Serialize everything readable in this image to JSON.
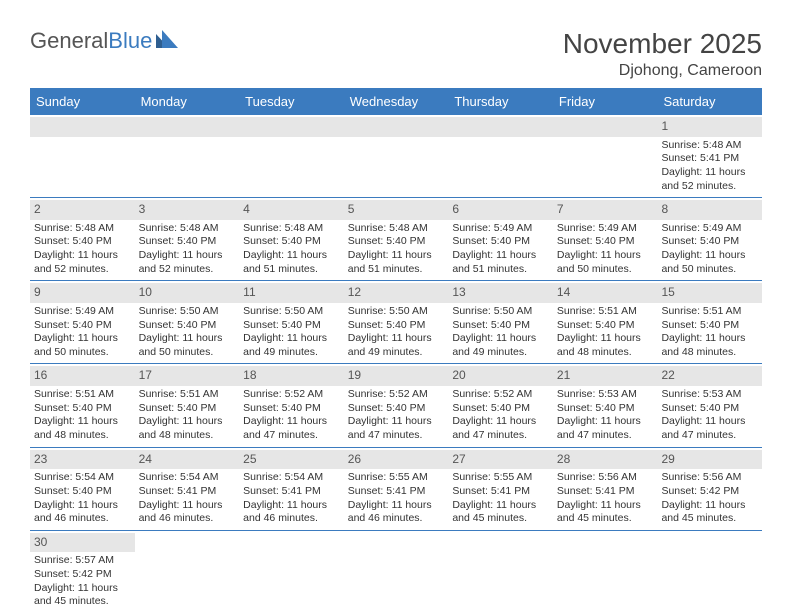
{
  "logo": {
    "text1": "General",
    "text2": "Blue"
  },
  "title": "November 2025",
  "location": "Djohong, Cameroon",
  "dayNames": [
    "Sunday",
    "Monday",
    "Tuesday",
    "Wednesday",
    "Thursday",
    "Friday",
    "Saturday"
  ],
  "colors": {
    "headerBg": "#3b7bbf",
    "dayBarBg": "#e6e6e6",
    "rowBorder": "#3b7bbf",
    "text": "#333333",
    "logoGrey": "#555555",
    "logoBlue": "#3b7bbf"
  },
  "labels": {
    "sunrise": "Sunrise:",
    "sunset": "Sunset:",
    "daylight": "Daylight:"
  },
  "weeks": [
    [
      null,
      null,
      null,
      null,
      null,
      null,
      {
        "n": "1",
        "sr": "5:48 AM",
        "ss": "5:41 PM",
        "dl": "11 hours and 52 minutes."
      }
    ],
    [
      {
        "n": "2",
        "sr": "5:48 AM",
        "ss": "5:40 PM",
        "dl": "11 hours and 52 minutes."
      },
      {
        "n": "3",
        "sr": "5:48 AM",
        "ss": "5:40 PM",
        "dl": "11 hours and 52 minutes."
      },
      {
        "n": "4",
        "sr": "5:48 AM",
        "ss": "5:40 PM",
        "dl": "11 hours and 51 minutes."
      },
      {
        "n": "5",
        "sr": "5:48 AM",
        "ss": "5:40 PM",
        "dl": "11 hours and 51 minutes."
      },
      {
        "n": "6",
        "sr": "5:49 AM",
        "ss": "5:40 PM",
        "dl": "11 hours and 51 minutes."
      },
      {
        "n": "7",
        "sr": "5:49 AM",
        "ss": "5:40 PM",
        "dl": "11 hours and 50 minutes."
      },
      {
        "n": "8",
        "sr": "5:49 AM",
        "ss": "5:40 PM",
        "dl": "11 hours and 50 minutes."
      }
    ],
    [
      {
        "n": "9",
        "sr": "5:49 AM",
        "ss": "5:40 PM",
        "dl": "11 hours and 50 minutes."
      },
      {
        "n": "10",
        "sr": "5:50 AM",
        "ss": "5:40 PM",
        "dl": "11 hours and 50 minutes."
      },
      {
        "n": "11",
        "sr": "5:50 AM",
        "ss": "5:40 PM",
        "dl": "11 hours and 49 minutes."
      },
      {
        "n": "12",
        "sr": "5:50 AM",
        "ss": "5:40 PM",
        "dl": "11 hours and 49 minutes."
      },
      {
        "n": "13",
        "sr": "5:50 AM",
        "ss": "5:40 PM",
        "dl": "11 hours and 49 minutes."
      },
      {
        "n": "14",
        "sr": "5:51 AM",
        "ss": "5:40 PM",
        "dl": "11 hours and 48 minutes."
      },
      {
        "n": "15",
        "sr": "5:51 AM",
        "ss": "5:40 PM",
        "dl": "11 hours and 48 minutes."
      }
    ],
    [
      {
        "n": "16",
        "sr": "5:51 AM",
        "ss": "5:40 PM",
        "dl": "11 hours and 48 minutes."
      },
      {
        "n": "17",
        "sr": "5:51 AM",
        "ss": "5:40 PM",
        "dl": "11 hours and 48 minutes."
      },
      {
        "n": "18",
        "sr": "5:52 AM",
        "ss": "5:40 PM",
        "dl": "11 hours and 47 minutes."
      },
      {
        "n": "19",
        "sr": "5:52 AM",
        "ss": "5:40 PM",
        "dl": "11 hours and 47 minutes."
      },
      {
        "n": "20",
        "sr": "5:52 AM",
        "ss": "5:40 PM",
        "dl": "11 hours and 47 minutes."
      },
      {
        "n": "21",
        "sr": "5:53 AM",
        "ss": "5:40 PM",
        "dl": "11 hours and 47 minutes."
      },
      {
        "n": "22",
        "sr": "5:53 AM",
        "ss": "5:40 PM",
        "dl": "11 hours and 47 minutes."
      }
    ],
    [
      {
        "n": "23",
        "sr": "5:54 AM",
        "ss": "5:40 PM",
        "dl": "11 hours and 46 minutes."
      },
      {
        "n": "24",
        "sr": "5:54 AM",
        "ss": "5:41 PM",
        "dl": "11 hours and 46 minutes."
      },
      {
        "n": "25",
        "sr": "5:54 AM",
        "ss": "5:41 PM",
        "dl": "11 hours and 46 minutes."
      },
      {
        "n": "26",
        "sr": "5:55 AM",
        "ss": "5:41 PM",
        "dl": "11 hours and 46 minutes."
      },
      {
        "n": "27",
        "sr": "5:55 AM",
        "ss": "5:41 PM",
        "dl": "11 hours and 45 minutes."
      },
      {
        "n": "28",
        "sr": "5:56 AM",
        "ss": "5:41 PM",
        "dl": "11 hours and 45 minutes."
      },
      {
        "n": "29",
        "sr": "5:56 AM",
        "ss": "5:42 PM",
        "dl": "11 hours and 45 minutes."
      }
    ],
    [
      {
        "n": "30",
        "sr": "5:57 AM",
        "ss": "5:42 PM",
        "dl": "11 hours and 45 minutes."
      },
      null,
      null,
      null,
      null,
      null,
      null
    ]
  ]
}
